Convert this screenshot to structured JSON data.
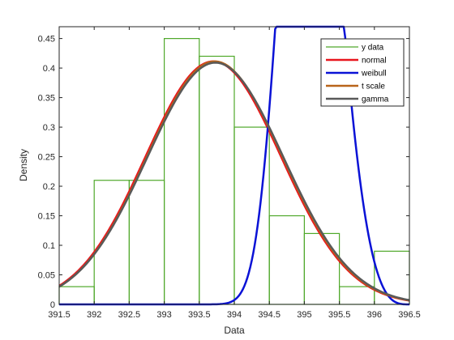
{
  "chart_data": {
    "type": "bar",
    "title": "",
    "xlabel": "Data",
    "ylabel": "Density",
    "xlim": [
      391.5,
      396.5
    ],
    "ylim": [
      0,
      0.47
    ],
    "xticks": [
      391.5,
      392,
      392.5,
      393,
      393.5,
      394,
      394.5,
      395,
      395.5,
      396,
      396.5
    ],
    "xtick_labels": [
      "391.5",
      "392",
      "392.5",
      "393",
      "393.5",
      "394",
      "394.5",
      "395",
      "395.5",
      "396",
      "396.5"
    ],
    "yticks": [
      0,
      0.05,
      0.1,
      0.15,
      0.2,
      0.25,
      0.3,
      0.35,
      0.4,
      0.45
    ],
    "ytick_labels": [
      "0",
      "0.05",
      "0.1",
      "0.15",
      "0.2",
      "0.25",
      "0.3",
      "0.35",
      "0.4",
      "0.45"
    ],
    "grid": false,
    "legend_placement": "top-right",
    "histogram": {
      "name": "y data",
      "color": "#4fa82a",
      "bin_edges": [
        391.5,
        392,
        392.5,
        393,
        393.5,
        394,
        394.5,
        395,
        395.5,
        396,
        396.5
      ],
      "values": [
        0.03,
        0.21,
        0.21,
        0.45,
        0.42,
        0.3,
        0.15,
        0.12,
        0.03,
        0.09
      ]
    },
    "series": [
      {
        "name": "normal",
        "color": "#e8161e",
        "width": 2.5,
        "distribution": "normal",
        "params": {
          "mu": 393.7,
          "sigma": 0.97
        }
      },
      {
        "name": "weibull",
        "color": "#0a12d6",
        "width": 2.5,
        "distribution": "weibull",
        "params": {
          "a": 394.4,
          "b": 4.2,
          "origin": 388
        }
      },
      {
        "name": "t scale",
        "color": "#b8641a",
        "width": 2.5,
        "distribution": "normal",
        "params": {
          "mu": 393.72,
          "sigma": 0.97
        }
      },
      {
        "name": "gamma",
        "color": "#595959",
        "width": 2.5,
        "distribution": "normal",
        "params": {
          "mu": 393.73,
          "sigma": 0.975
        }
      }
    ]
  }
}
